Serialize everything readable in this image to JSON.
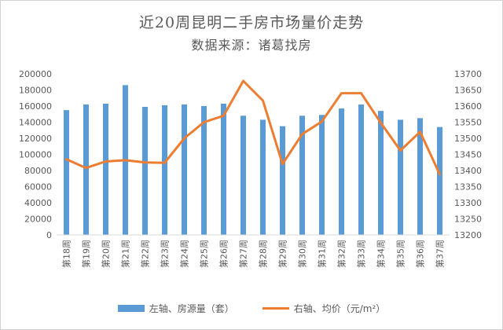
{
  "chart_data": {
    "type": "bar+line",
    "title": "近20周昆明二手房市场量价走势",
    "subtitle": "数据来源：诸葛找房",
    "categories": [
      "第18周",
      "第19周",
      "第20周",
      "第21周",
      "第22周",
      "第23周",
      "第24周",
      "第25周",
      "第26周",
      "第27周",
      "第28周",
      "第29周",
      "第30周",
      "第31周",
      "第32周",
      "第33周",
      "第34周",
      "第35周",
      "第36周",
      "第37周"
    ],
    "series": [
      {
        "name": "左轴、房源量（套）",
        "type": "bar",
        "axis": "left",
        "color": "#5b9bd5",
        "values": [
          155000,
          162000,
          163000,
          186000,
          159000,
          161000,
          162000,
          160000,
          163000,
          148000,
          143000,
          135000,
          148000,
          149000,
          157000,
          162000,
          154000,
          143000,
          145000,
          134000
        ]
      },
      {
        "name": "右轴、均价（元/m²）",
        "type": "line",
        "axis": "right",
        "color": "#ed7d31",
        "values": [
          13435,
          13408,
          13428,
          13432,
          13425,
          13424,
          13500,
          13550,
          13570,
          13678,
          13617,
          13420,
          13513,
          13552,
          13640,
          13640,
          13548,
          13462,
          13520,
          13388
        ]
      }
    ],
    "left_axis": {
      "min": 0,
      "max": 200000,
      "step": 20000,
      "ticks": [
        "0",
        "20000",
        "40000",
        "60000",
        "80000",
        "100000",
        "120000",
        "140000",
        "160000",
        "180000",
        "200000"
      ]
    },
    "right_axis": {
      "min": 13200,
      "max": 13700,
      "step": 50,
      "ticks": [
        "13200",
        "13250",
        "13300",
        "13350",
        "13400",
        "13450",
        "13500",
        "13550",
        "13600",
        "13650",
        "13700"
      ]
    },
    "legend": [
      "左轴、房源量（套）",
      "右轴、均价（元/m²）"
    ],
    "legend_position": "bottom"
  }
}
